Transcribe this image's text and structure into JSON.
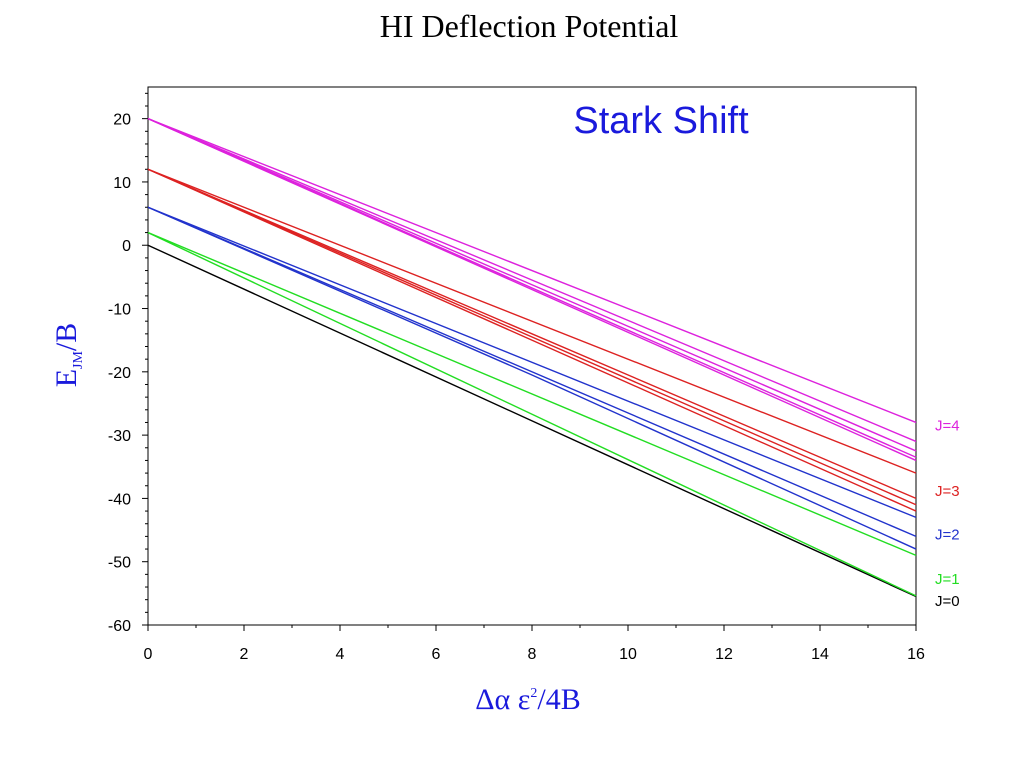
{
  "chart_data": {
    "type": "line",
    "title": "HI Deflection Potential",
    "annotation": "Stark Shift",
    "xlabel": {
      "main": "Δα ε",
      "sup": "2",
      "rest": "/4B"
    },
    "ylabel": {
      "main": "E",
      "sub": "JM",
      "rest": "/B"
    },
    "xlim": [
      0,
      16
    ],
    "ylim": [
      -60,
      25
    ],
    "xticks": [
      0,
      2,
      4,
      6,
      8,
      10,
      12,
      14,
      16
    ],
    "yticks": [
      20,
      10,
      0,
      -10,
      -20,
      -30,
      -40,
      -50,
      -60
    ],
    "grid": false,
    "colors": {
      "J0": "#000000",
      "J1": "#22dd22",
      "J2": "#2233cc",
      "J3": "#dd2222",
      "J4": "#dd22dd"
    },
    "series": [
      {
        "group": "J0",
        "x": [
          0,
          16
        ],
        "y": [
          0,
          -55.5
        ]
      },
      {
        "group": "J1",
        "x": [
          0,
          16
        ],
        "y": [
          2,
          -55.4
        ]
      },
      {
        "group": "J1",
        "x": [
          0,
          16
        ],
        "y": [
          2,
          -49
        ]
      },
      {
        "group": "J2",
        "x": [
          0,
          8,
          16
        ],
        "y": [
          6,
          -20.5,
          -48
        ]
      },
      {
        "group": "J2",
        "x": [
          0,
          16
        ],
        "y": [
          6,
          -46
        ]
      },
      {
        "group": "J2",
        "x": [
          0,
          16
        ],
        "y": [
          6,
          -43
        ]
      },
      {
        "group": "J3",
        "x": [
          0,
          16
        ],
        "y": [
          12,
          -42
        ]
      },
      {
        "group": "J3",
        "x": [
          0,
          16
        ],
        "y": [
          12,
          -41
        ]
      },
      {
        "group": "J3",
        "x": [
          0,
          16
        ],
        "y": [
          12,
          -40
        ]
      },
      {
        "group": "J3",
        "x": [
          0,
          16
        ],
        "y": [
          12,
          -36
        ]
      },
      {
        "group": "J4",
        "x": [
          0,
          16
        ],
        "y": [
          20,
          -34
        ]
      },
      {
        "group": "J4",
        "x": [
          0,
          16
        ],
        "y": [
          20,
          -33.5
        ]
      },
      {
        "group": "J4",
        "x": [
          0,
          16
        ],
        "y": [
          20,
          -32.5
        ]
      },
      {
        "group": "J4",
        "x": [
          0,
          16
        ],
        "y": [
          20,
          -31
        ]
      },
      {
        "group": "J4",
        "x": [
          0,
          16
        ],
        "y": [
          20,
          -28
        ]
      }
    ],
    "labels": [
      {
        "text": "J=4",
        "group": "J4",
        "y": -28.5
      },
      {
        "text": "J=3",
        "group": "J3",
        "y": -38.8
      },
      {
        "text": "J=2",
        "group": "J2",
        "y": -45.7
      },
      {
        "text": "J=1",
        "group": "J1",
        "y": -52.7
      },
      {
        "text": "J=0",
        "group": "J0",
        "y": -56.2
      }
    ]
  }
}
